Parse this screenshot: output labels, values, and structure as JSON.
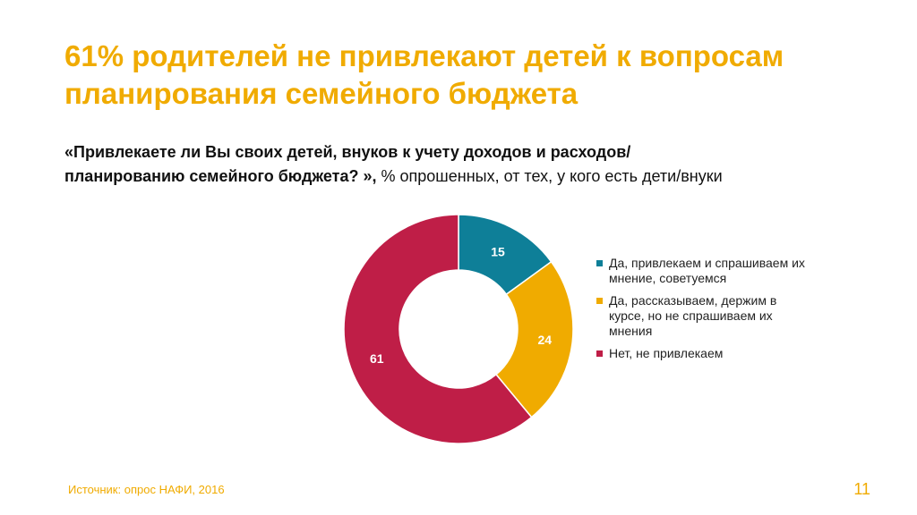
{
  "slide": {
    "title_line1": "61% родителей не привлекают детей к вопросам",
    "title_line2": "планирования семейного бюджета",
    "question_line1": "«Привлекаете ли Вы своих детей, внуков к учету доходов и расходов/",
    "question_line2": "планированию семейного бюджета? »,",
    "question_note": " % опрошенных, от тех, у кого есть дети/внуки",
    "source": "Источник: опрос НАФИ, 2016",
    "page_number": "11"
  },
  "chart_data": {
    "type": "pie",
    "donut": true,
    "legend_position": "right",
    "categories": [
      "Да, привлекаем и спрашиваем их мнение, советуемся",
      "Да, рассказываем, держим в курсе, но не спрашиваем их мнения",
      "Нет, не привлекаем"
    ],
    "values": [
      15,
      24,
      61
    ],
    "labels": [
      "15",
      "24",
      "61"
    ],
    "colors": [
      "#0e7f98",
      "#f0ab00",
      "#bf1e47"
    ],
    "label_colors": [
      "#ffffff",
      "#ffffff",
      "#ffffff"
    ]
  }
}
